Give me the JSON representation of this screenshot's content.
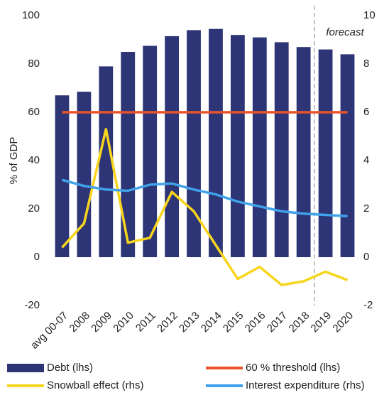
{
  "chart_data": {
    "type": "combo",
    "ylabel": "% of GDP",
    "annotation": "forecast",
    "categories": [
      "avg 00-07",
      "2008",
      "2009",
      "2010",
      "2011",
      "2012",
      "2013",
      "2014",
      "2015",
      "2016",
      "2017",
      "2018",
      "2019",
      "2020"
    ],
    "series": [
      {
        "name": "Debt (lhs)",
        "type": "bar",
        "color": "#2e3576",
        "values": [
          67,
          68.5,
          79,
          85,
          87.5,
          91.5,
          94,
          94.5,
          92,
          91,
          89,
          87,
          86,
          84
        ]
      },
      {
        "name": "60 % threshold (lhs)",
        "type": "line",
        "color": "#e8532a",
        "values": [
          60,
          60,
          60,
          60,
          60,
          60,
          60,
          60,
          60,
          60,
          60,
          60,
          60,
          60
        ]
      },
      {
        "name": "Snowball effect (rhs)",
        "type": "line",
        "axis": "y2",
        "color": "#f7d51d",
        "values": [
          0.4,
          1.4,
          5.3,
          0.6,
          0.8,
          2.7,
          1.9,
          0.5,
          -0.9,
          -0.4,
          -1.15,
          -1.0,
          -0.6,
          -0.95
        ]
      },
      {
        "name": "Interest expenditure (rhs)",
        "type": "line",
        "axis": "y2",
        "color": "#3fa2ea",
        "values": [
          3.2,
          2.95,
          2.8,
          2.75,
          3.0,
          3.05,
          2.8,
          2.6,
          2.3,
          2.1,
          1.9,
          1.8,
          1.75,
          1.7
        ]
      }
    ],
    "ylim": [
      -20,
      100
    ],
    "yticks": [
      -20,
      0,
      20,
      40,
      60,
      80,
      100
    ],
    "y2lim": [
      -2,
      10
    ],
    "y2ticks": [
      -2,
      0,
      2,
      4,
      6,
      8,
      10
    ],
    "grid": false
  }
}
